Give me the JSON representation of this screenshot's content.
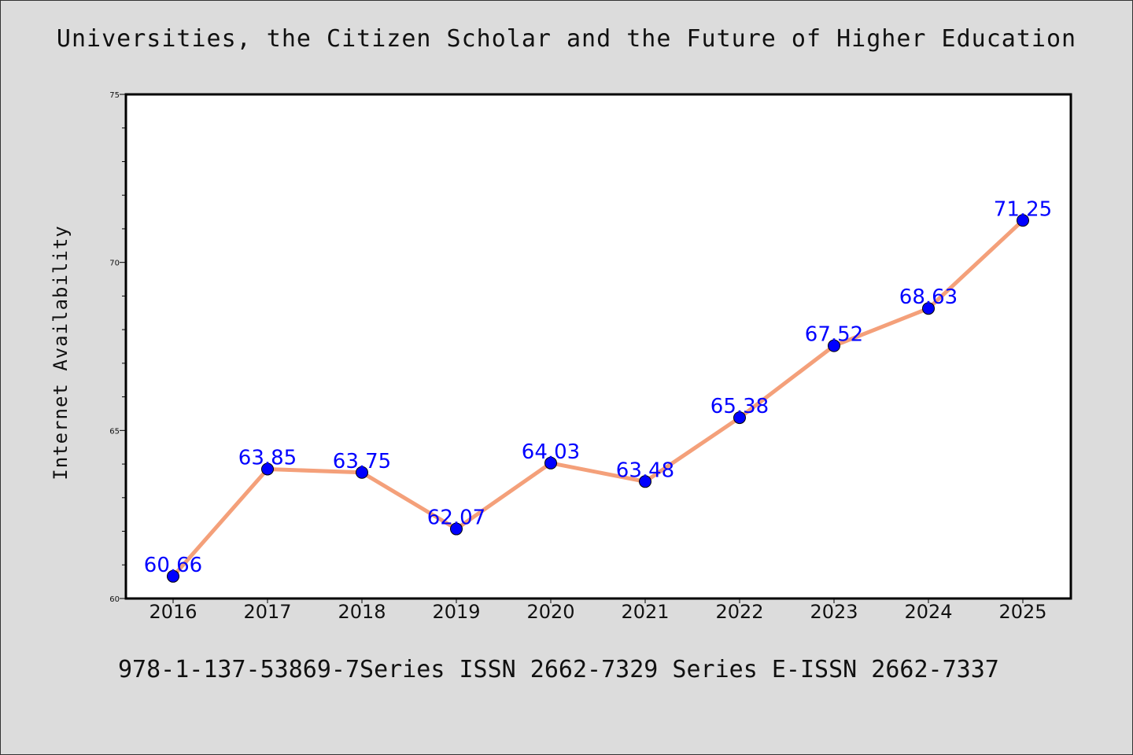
{
  "chart_data": {
    "type": "line",
    "title": "Universities, the Citizen Scholar and the Future of Higher Education",
    "xlabel": "",
    "ylabel": "Internet Availability",
    "categories": [
      "2016",
      "2017",
      "2018",
      "2019",
      "2020",
      "2021",
      "2022",
      "2023",
      "2024",
      "2025"
    ],
    "series": [
      {
        "values": [
          60.66,
          63.85,
          63.75,
          62.07,
          64.03,
          63.48,
          65.38,
          67.52,
          68.63,
          71.25
        ],
        "labels": [
          "60.66",
          "63.85",
          "63.75",
          "62.07",
          "64.03",
          "63.48",
          "65.38",
          "67.52",
          "68.63",
          "71.25"
        ],
        "line_color": "#f4a07a",
        "marker_color": "#0000ff"
      }
    ],
    "ylim": [
      60,
      75
    ],
    "y_major_ticks": [
      60,
      65,
      70,
      75
    ],
    "y_minor_step": 1,
    "grid": false,
    "legend": "none"
  },
  "footer": {
    "text": "978-1-137-53869-7Series ISSN 2662-7329 Series E-ISSN 2662-7337"
  },
  "colors": {
    "background": "#dcdcdc",
    "plot_background": "#ffffff",
    "axis": "#000000",
    "data_label": "#0000ff"
  }
}
